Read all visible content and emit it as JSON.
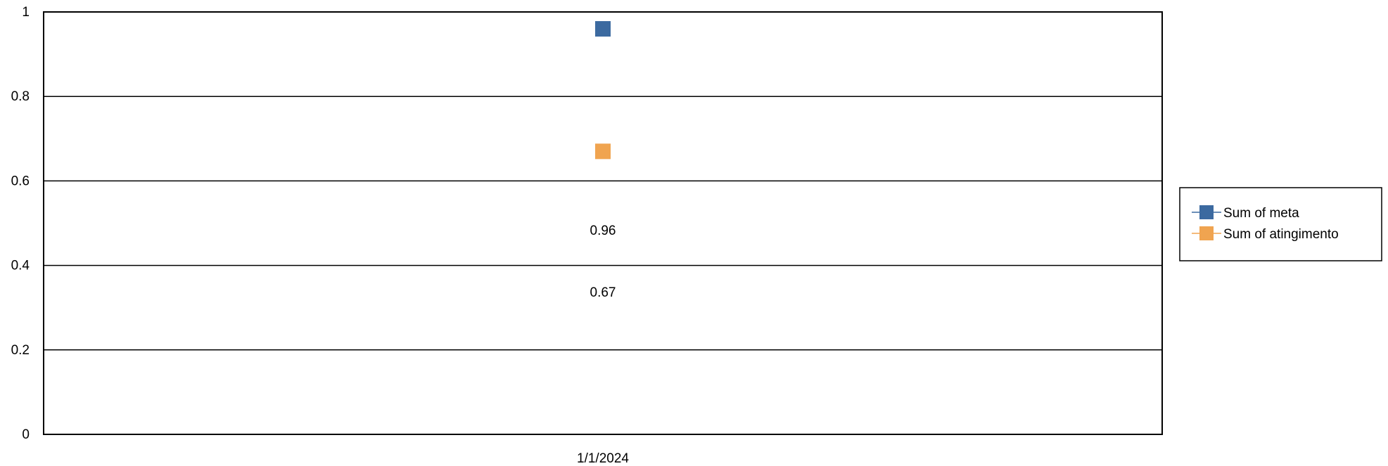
{
  "chart_data": {
    "type": "line",
    "title": "",
    "xlabel": "",
    "ylabel": "",
    "categories": [
      "1/1/2024"
    ],
    "ylim": [
      0,
      1
    ],
    "y_ticks": [
      "0",
      "0.2",
      "0.4",
      "0.6",
      "0.8",
      "1"
    ],
    "grid": true,
    "legend_position": "right",
    "series": [
      {
        "name": "Sum of meta",
        "values": [
          0.96
        ],
        "color": "#3c6aa0",
        "marker": "square",
        "data_label": "0.96"
      },
      {
        "name": "Sum of atingimento",
        "values": [
          0.67
        ],
        "color": "#f0a450",
        "marker": "square",
        "data_label": "0.67"
      }
    ]
  }
}
